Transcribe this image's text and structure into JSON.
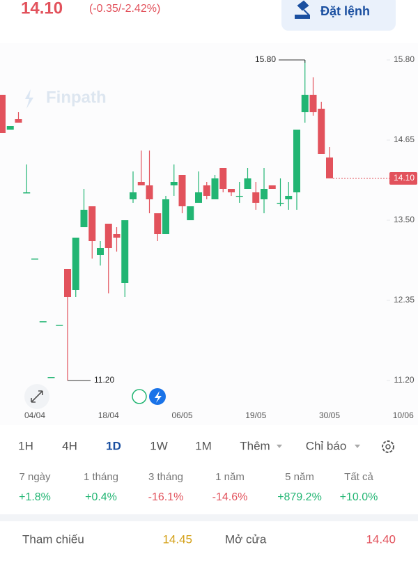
{
  "header": {
    "price": "14.10",
    "change": "(-0.35/-2.42%)",
    "order_button": "Đặt lệnh"
  },
  "chart_data": {
    "type": "candlestick",
    "watermark": "Finpath",
    "categories": [
      null,
      null,
      null,
      null,
      "04/04",
      null,
      null,
      null,
      null,
      null,
      null,
      null,
      null,
      "18/04",
      null,
      null,
      null,
      null,
      null,
      null,
      null,
      null,
      "06/05",
      null,
      null,
      null,
      null,
      null,
      null,
      null,
      null,
      "19/05",
      null,
      null,
      null,
      null,
      null,
      null,
      null,
      null,
      "30/05",
      null,
      null,
      null,
      null,
      null,
      null,
      null,
      null,
      "10/06"
    ],
    "open": [
      15.3,
      14.8,
      14.95,
      13.9,
      12.95,
      12.05,
      11.25,
      12.0,
      12.8,
      12.5,
      13.4,
      13.7,
      13.0,
      13.45,
      13.3,
      12.6,
      13.8,
      14.05,
      14.0,
      13.6,
      13.3,
      14.0,
      14.15,
      13.5,
      13.75,
      14.0,
      13.8,
      14.25,
      13.95,
      13.85,
      13.95,
      13.9,
      13.8,
      14.0,
      13.75,
      13.8,
      13.9,
      15.05,
      15.3,
      15.1,
      14.4,
      null,
      null,
      null,
      null,
      null,
      null,
      null,
      null,
      null
    ],
    "high": [
      15.3,
      14.85,
      15.05,
      14.3,
      12.95,
      12.05,
      11.25,
      12.0,
      12.8,
      13.25,
      13.95,
      13.7,
      13.2,
      13.45,
      13.4,
      13.5,
      14.2,
      14.5,
      14.5,
      13.6,
      13.85,
      14.3,
      14.15,
      13.7,
      14.2,
      14.05,
      14.15,
      14.25,
      13.95,
      14.05,
      14.25,
      14.05,
      14.25,
      14.0,
      14.1,
      14.05,
      14.8,
      15.8,
      15.55,
      15.2,
      14.55,
      null,
      null,
      null,
      null,
      null,
      null,
      null,
      null,
      null
    ],
    "low": [
      14.75,
      14.8,
      14.9,
      13.9,
      12.95,
      12.05,
      11.25,
      12.0,
      11.2,
      12.4,
      13.4,
      12.95,
      12.85,
      12.45,
      13.05,
      12.4,
      13.75,
      14.0,
      13.6,
      13.2,
      13.3,
      13.85,
      13.6,
      13.5,
      13.75,
      13.8,
      13.8,
      13.9,
      13.85,
      13.75,
      13.95,
      13.65,
      13.6,
      13.95,
      13.7,
      13.65,
      13.65,
      14.9,
      15.0,
      14.45,
      14.1,
      null,
      null,
      null,
      null,
      null,
      null,
      null,
      null,
      null
    ],
    "close": [
      14.75,
      14.85,
      14.9,
      13.9,
      12.95,
      12.05,
      11.25,
      12.0,
      12.4,
      13.25,
      13.65,
      13.2,
      13.1,
      13.1,
      13.25,
      13.5,
      13.9,
      14.0,
      13.8,
      13.3,
      13.8,
      14.05,
      13.7,
      13.7,
      13.9,
      13.85,
      14.1,
      13.95,
      13.9,
      13.85,
      14.1,
      13.75,
      13.95,
      13.95,
      13.75,
      13.85,
      14.8,
      15.3,
      15.05,
      14.45,
      14.1,
      null,
      null,
      null,
      null,
      null,
      null,
      null,
      null,
      null
    ],
    "up_color": "#22b573",
    "down_color": "#e2525c",
    "ylim": [
      10.76,
      16.01
    ],
    "yticks": [
      {
        "value": 11.2,
        "label": "11.20"
      },
      {
        "value": 12.35,
        "label": "12.35"
      },
      {
        "value": 13.5,
        "label": "13.50"
      },
      {
        "value": 14.65,
        "label": "14.65"
      },
      {
        "value": 15.8,
        "label": "15.80"
      }
    ],
    "annotations": {
      "high": {
        "value": 15.8,
        "label": "15.80"
      },
      "low": {
        "value": 11.2,
        "label": "11.20"
      },
      "last": {
        "value": 14.1,
        "label": "14.10"
      }
    }
  },
  "tabs": [
    "1H",
    "4H",
    "1D",
    "1W",
    "1M",
    "Thêm",
    "Chỉ báo"
  ],
  "active_tab": 2,
  "periods": [
    {
      "label": "7 ngày",
      "change": "+1.8%"
    },
    {
      "label": "1 tháng",
      "change": "+0.4%"
    },
    {
      "label": "3 tháng",
      "change": "-16.1%"
    },
    {
      "label": "1 năm",
      "change": "-14.6%"
    },
    {
      "label": "5 năm",
      "change": "+879.2%"
    },
    {
      "label": "Tất cả",
      "change": "+10.0%"
    }
  ],
  "summary": [
    {
      "label": "Tham chiếu",
      "value": "14.45",
      "color": "#d4a017"
    },
    {
      "label": "Mở cửa",
      "value": "14.40",
      "color": "#e2525c"
    }
  ]
}
